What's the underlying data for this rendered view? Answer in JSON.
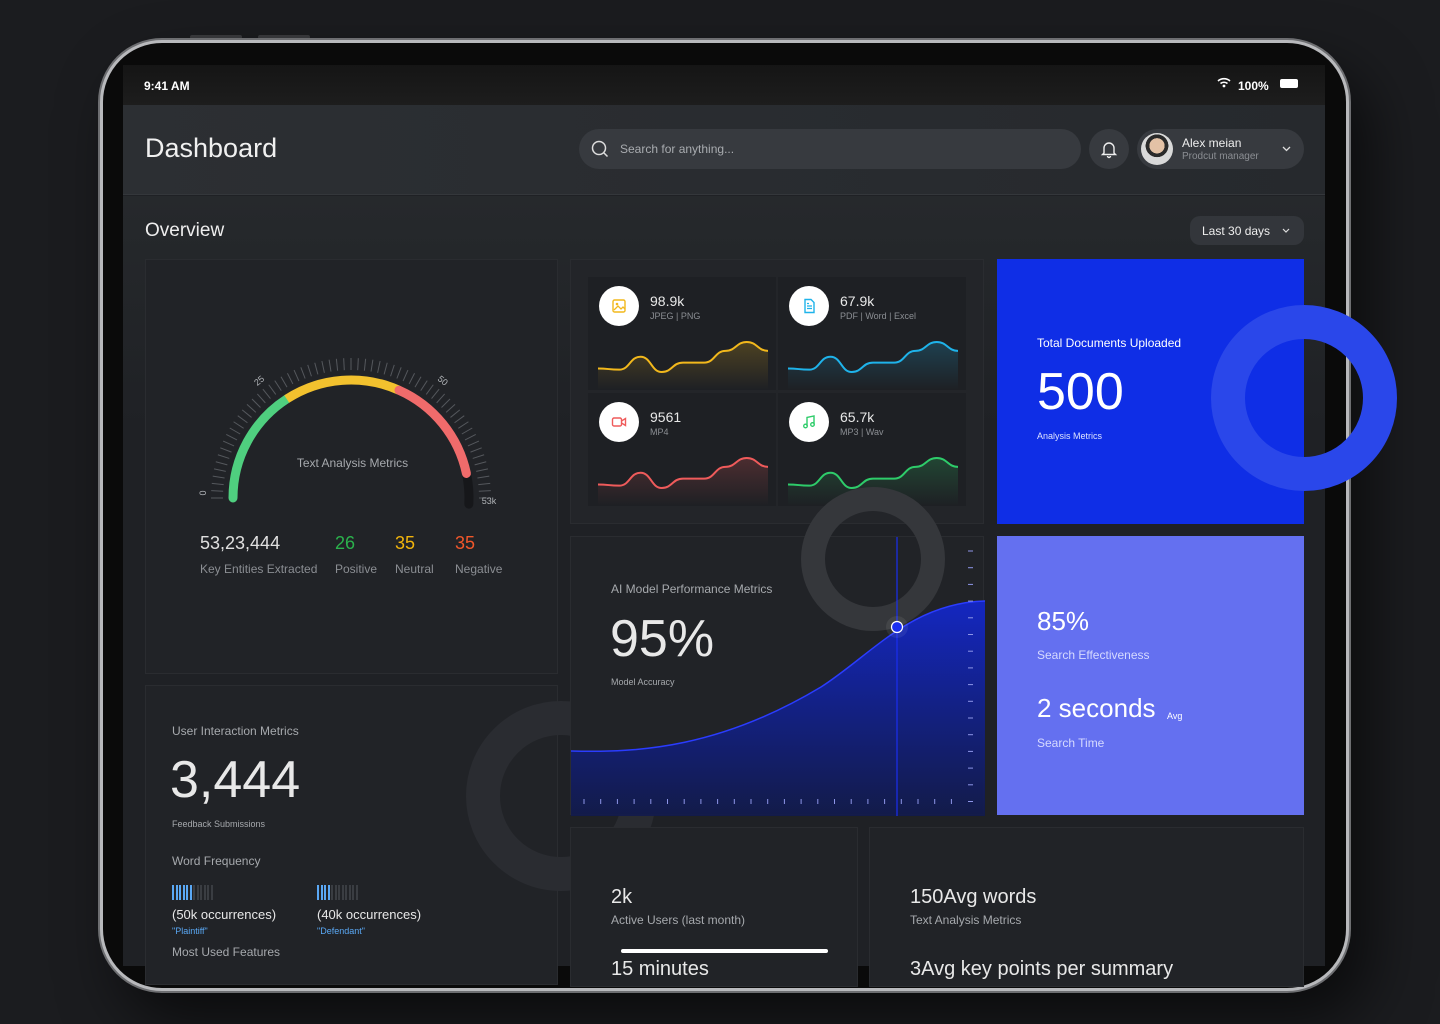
{
  "status_bar": {
    "time": "9:41 AM",
    "battery": "100%"
  },
  "header": {
    "title": "Dashboard",
    "search_placeholder": "Search for anything...",
    "user": {
      "name": "Alex meian",
      "role": "Prodcut manager"
    }
  },
  "overview": {
    "title": "Overview",
    "range": "Last 30 days"
  },
  "gauge": {
    "title": "Text Analysis Metrics",
    "scale_labels": [
      "0",
      "25",
      "50",
      "53k"
    ],
    "segments": [
      {
        "color": "#4fcf7f"
      },
      {
        "color": "#f2c12e"
      },
      {
        "color": "#f06b6b"
      }
    ],
    "stats": [
      {
        "value": "53,23,444",
        "label": "Key Entities Extracted",
        "color": "#e0e0e0"
      },
      {
        "value": "26",
        "label": "Positive",
        "color": "#2bb24c"
      },
      {
        "value": "35",
        "label": "Neutral",
        "color": "#f2b40c"
      },
      {
        "value": "35",
        "label": "Negative",
        "color": "#f0572a"
      }
    ]
  },
  "file_types": [
    {
      "value": "98.9k",
      "label": "JPEG | PNG",
      "icon": "image-icon",
      "color": "#f2b81c",
      "trend": [
        3,
        2.8,
        5,
        2.4,
        4,
        4,
        6,
        7.5,
        6
      ]
    },
    {
      "value": "67.9k",
      "label": "PDF | Word | Excel",
      "icon": "document-icon",
      "color": "#1fb3ea",
      "trend": [
        3,
        2.8,
        5,
        2.4,
        4,
        4,
        6,
        7.5,
        6
      ]
    },
    {
      "value": "9561",
      "label": "MP4",
      "icon": "video-icon",
      "color": "#ef5b5b",
      "trend": [
        3,
        2.8,
        5,
        2.4,
        4,
        4,
        6,
        7.5,
        6
      ]
    },
    {
      "value": "65.7k",
      "label": "MP3 | Wav",
      "icon": "music-icon",
      "color": "#2ecc6a",
      "trend": [
        3,
        2.8,
        5,
        2.4,
        4,
        4,
        6,
        7.5,
        6
      ]
    }
  ],
  "documents": {
    "title": "Total Documents Uploaded",
    "value": "500",
    "subtitle": "Analysis Metrics",
    "color": "#0f2ee6"
  },
  "ai_model": {
    "title": "AI Model Performance Metrics",
    "value": "95%",
    "subtitle": "Model Accuracy",
    "color": "#1a2ef0"
  },
  "search": {
    "effectiveness": "85%",
    "effectiveness_label": "Search Effectiveness",
    "time": "2 seconds",
    "time_unit": "Avg",
    "time_label": "Search Time",
    "color": "#6470f0"
  },
  "user_interaction": {
    "title": "User Interaction Metrics",
    "value": "3,444",
    "subtitle": "Feedback Submissions",
    "word_freq_title": "Word Frequency",
    "words": [
      {
        "count": "(50k occurrences)",
        "word": "\"Plaintiff\"",
        "filled": 6,
        "total": 12
      },
      {
        "count": "(40k occurrences)",
        "word": "\"Defendant\"",
        "filled": 4,
        "total": 12
      }
    ],
    "next_section": "Most Used Features"
  },
  "active_users": {
    "value": "2k",
    "label": "Active Users (last month)",
    "next_value": "15 minutes"
  },
  "text_metrics": {
    "value": "150Avg words",
    "label": "Text Analysis Metrics",
    "next_value": "3Avg key points per summary"
  }
}
